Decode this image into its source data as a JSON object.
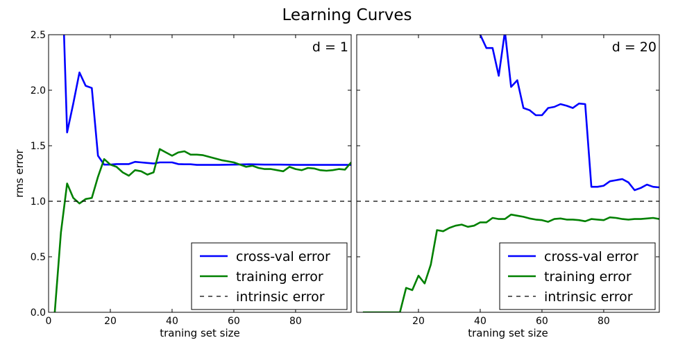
{
  "figure": {
    "title": "Learning Curves"
  },
  "chart_data": [
    {
      "type": "line",
      "annotation": "d = 1",
      "xlabel": "traning set size",
      "ylabel": "rms error",
      "xlim": [
        0,
        98
      ],
      "ylim": [
        0,
        2.5
      ],
      "xticks": [
        0,
        20,
        40,
        60,
        80
      ],
      "yticks": [
        0.0,
        0.5,
        1.0,
        1.5,
        2.0,
        2.5
      ],
      "grid": false,
      "legend_position": "lower-right",
      "series": [
        {
          "name": "cross-val error",
          "color": "#0000ff",
          "style": "solid",
          "x": [
            5,
            6,
            8,
            10,
            12,
            14,
            16,
            18,
            20,
            22,
            24,
            26,
            28,
            30,
            32,
            34,
            36,
            38,
            40,
            42,
            44,
            46,
            48,
            50,
            55,
            60,
            65,
            70,
            75,
            80,
            85,
            90,
            95,
            98
          ],
          "y": [
            2.5,
            1.62,
            1.88,
            2.16,
            2.04,
            2.02,
            1.41,
            1.33,
            1.33,
            1.335,
            1.335,
            1.335,
            1.355,
            1.35,
            1.345,
            1.34,
            1.35,
            1.35,
            1.35,
            1.335,
            1.333,
            1.333,
            1.328,
            1.328,
            1.328,
            1.33,
            1.333,
            1.33,
            1.33,
            1.328,
            1.328,
            1.328,
            1.328,
            1.328
          ]
        },
        {
          "name": "training error",
          "color": "#008000",
          "style": "solid",
          "x": [
            2,
            4,
            6,
            8,
            10,
            12,
            14,
            16,
            18,
            20,
            22,
            24,
            26,
            28,
            30,
            32,
            34,
            36,
            38,
            40,
            42,
            44,
            46,
            48,
            50,
            52,
            54,
            56,
            58,
            60,
            62,
            64,
            66,
            68,
            70,
            72,
            74,
            76,
            78,
            80,
            82,
            84,
            86,
            88,
            90,
            92,
            94,
            96,
            98
          ],
          "y": [
            0.0,
            0.72,
            1.16,
            1.03,
            0.98,
            1.02,
            1.03,
            1.22,
            1.38,
            1.33,
            1.31,
            1.26,
            1.23,
            1.28,
            1.27,
            1.24,
            1.26,
            1.47,
            1.44,
            1.41,
            1.44,
            1.45,
            1.42,
            1.42,
            1.415,
            1.4,
            1.385,
            1.37,
            1.36,
            1.35,
            1.33,
            1.31,
            1.32,
            1.3,
            1.29,
            1.29,
            1.28,
            1.27,
            1.31,
            1.29,
            1.28,
            1.3,
            1.295,
            1.28,
            1.275,
            1.28,
            1.29,
            1.285,
            1.35
          ]
        },
        {
          "name": "intrinsic error",
          "color": "#000000",
          "style": "dashed",
          "x": [
            0,
            98
          ],
          "y": [
            1.0,
            1.0
          ]
        }
      ]
    },
    {
      "type": "line",
      "annotation": "d = 20",
      "xlabel": "traning set size",
      "ylabel": "",
      "xlim": [
        0,
        98
      ],
      "ylim": [
        0,
        2.5
      ],
      "xticks": [
        20,
        40,
        60,
        80
      ],
      "yticks": [],
      "grid": false,
      "legend_position": "lower-right",
      "series": [
        {
          "name": "cross-val error",
          "color": "#0000ff",
          "style": "solid",
          "x": [
            40,
            42,
            44,
            46,
            48,
            50,
            52,
            54,
            56,
            58,
            60,
            62,
            64,
            66,
            68,
            70,
            72,
            74,
            76,
            78,
            80,
            82,
            84,
            86,
            88,
            90,
            92,
            94,
            96,
            98
          ],
          "y": [
            2.5,
            2.38,
            2.38,
            2.13,
            2.53,
            2.03,
            2.09,
            1.84,
            1.82,
            1.775,
            1.775,
            1.84,
            1.85,
            1.875,
            1.86,
            1.84,
            1.88,
            1.875,
            1.13,
            1.13,
            1.14,
            1.18,
            1.19,
            1.2,
            1.17,
            1.1,
            1.12,
            1.15,
            1.13,
            1.125
          ]
        },
        {
          "name": "training error",
          "color": "#008000",
          "style": "solid",
          "x": [
            2,
            4,
            6,
            8,
            10,
            12,
            14,
            16,
            18,
            20,
            22,
            24,
            26,
            28,
            30,
            32,
            34,
            36,
            38,
            40,
            42,
            44,
            46,
            48,
            50,
            52,
            54,
            56,
            58,
            60,
            62,
            64,
            66,
            68,
            70,
            72,
            74,
            76,
            78,
            80,
            82,
            84,
            86,
            88,
            90,
            92,
            94,
            96,
            98
          ],
          "y": [
            0.0,
            0.0,
            0.0,
            0.0,
            0.0,
            0.0,
            0.0,
            0.22,
            0.2,
            0.33,
            0.26,
            0.43,
            0.74,
            0.73,
            0.76,
            0.78,
            0.79,
            0.77,
            0.78,
            0.81,
            0.81,
            0.85,
            0.84,
            0.84,
            0.88,
            0.87,
            0.86,
            0.845,
            0.835,
            0.83,
            0.815,
            0.84,
            0.845,
            0.835,
            0.835,
            0.83,
            0.82,
            0.84,
            0.835,
            0.83,
            0.855,
            0.85,
            0.84,
            0.835,
            0.84,
            0.84,
            0.845,
            0.85,
            0.84
          ]
        },
        {
          "name": "intrinsic error",
          "color": "#000000",
          "style": "dashed",
          "x": [
            0,
            98
          ],
          "y": [
            1.0,
            1.0
          ]
        }
      ]
    }
  ]
}
